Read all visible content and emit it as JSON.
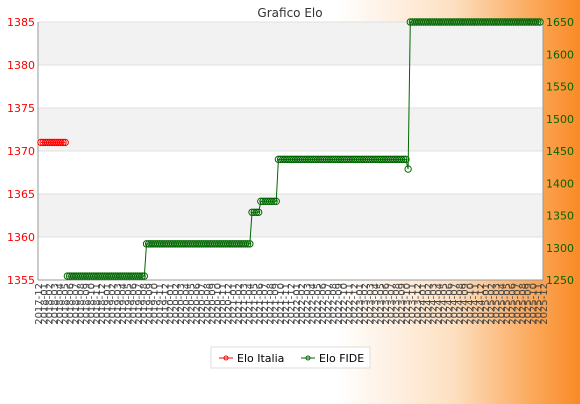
{
  "chart_data": {
    "type": "line",
    "title": "Grafico Elo",
    "grid": true,
    "legend_position": "bottom-center",
    "y_left": {
      "lim": [
        1355,
        1385
      ],
      "ticks": [
        1355,
        1360,
        1365,
        1370,
        1375,
        1380,
        1385
      ],
      "color": "#ff0000"
    },
    "y_right": {
      "lim": [
        1250,
        1650
      ],
      "ticks": [
        1250,
        1300,
        1350,
        1400,
        1450,
        1500,
        1550,
        1600,
        1650
      ],
      "color": "#006600"
    },
    "x_tick_labels": [
      "2017-12",
      "2018-01",
      "2018-02",
      "2018-03",
      "2018-04",
      "2018-05",
      "2018-06",
      "2018-07",
      "2018-08",
      "2018-09",
      "2018-10",
      "2018-11",
      "2018-12",
      "2019-01",
      "2019-02",
      "2019-03",
      "2019-04",
      "2019-05",
      "2019-06",
      "2019-07",
      "2019-08",
      "2019-09",
      "2019-10",
      "2019-11",
      "2019-12",
      "2020-01",
      "2020-02",
      "2020-03",
      "2020-04",
      "2020-05",
      "2020-06",
      "2020-07",
      "2020-08",
      "2020-09",
      "2020-10",
      "2020-11",
      "2020-12",
      "2021-01",
      "2021-02",
      "2021-03",
      "2021-04",
      "2021-05",
      "2021-06",
      "2021-07",
      "2021-08",
      "2021-09",
      "2021-10",
      "2021-11",
      "2021-12",
      "2022-01",
      "2022-02",
      "2022-03",
      "2022-04",
      "2022-05",
      "2022-06",
      "2022-07",
      "2022-08",
      "2022-09",
      "2022-10",
      "2022-11",
      "2022-12",
      "2023-01",
      "2023-02",
      "2023-03",
      "2023-04",
      "2023-05",
      "2023-06",
      "2023-07",
      "2023-08",
      "2023-09",
      "2023-10",
      "2023-11",
      "2023-12",
      "2024-01",
      "2024-02",
      "2024-03",
      "2024-04",
      "2024-05",
      "2024-06",
      "2024-07",
      "2024-08",
      "2024-09",
      "2024-10",
      "2024-11",
      "2024-12",
      "2025-01",
      "2025-02",
      "2025-03",
      "2025-04",
      "2025-05",
      "2025-06",
      "2025-07",
      "2025-08",
      "2025-09",
      "2025-10",
      "2025-11",
      "2025-12"
    ],
    "series": [
      {
        "name": "Elo Italia",
        "axis": "left",
        "color": "#ff0000",
        "values": [
          1371,
          1371,
          1371,
          1371,
          1371,
          1371,
          1371,
          1371,
          1371,
          1371,
          1371,
          1371
        ]
      },
      {
        "name": "Elo FIDE",
        "axis": "right",
        "color": "#006600",
        "values": [
          null,
          null,
          null,
          null,
          null,
          null,
          null,
          null,
          null,
          null,
          null,
          null,
          1256,
          1256,
          1256,
          1256,
          1256,
          1256,
          1256,
          1256,
          1256,
          1256,
          1256,
          1256,
          1256,
          1256,
          1256,
          1256,
          1256,
          1256,
          1256,
          1256,
          1256,
          1256,
          1256,
          1256,
          1256,
          1256,
          1256,
          1256,
          1256,
          1256,
          1256,
          1256,
          1256,
          1256,
          1256,
          1256,
          1306,
          1306,
          1306,
          1306,
          1306,
          1306,
          1306,
          1306,
          1306,
          1306,
          1306,
          1306,
          1306,
          1306,
          1306,
          1306,
          1306,
          1306,
          1306,
          1306,
          1306,
          1306,
          1306,
          1306,
          1306,
          1306,
          1306,
          1306,
          1306,
          1306,
          1306,
          1306,
          1306,
          1306,
          1306,
          1306,
          1306,
          1306,
          1306,
          1306,
          1306,
          1306,
          1306,
          1306,
          1306,
          1306,
          1306,
          1306,
          1355,
          1355,
          1355,
          1355,
          1372,
          1372,
          1372,
          1372,
          1372,
          1372,
          1372,
          1372,
          1437,
          1437,
          1437,
          1437,
          1437,
          1437,
          1437,
          1437,
          1437,
          1437,
          1437,
          1437,
          1437,
          1437,
          1437,
          1437,
          1437,
          1437,
          1437,
          1437,
          1437,
          1437,
          1437,
          1437,
          1437,
          1437,
          1437,
          1437,
          1437,
          1437,
          1437,
          1437,
          1437,
          1437,
          1437,
          1437,
          1437,
          1437,
          1437,
          1437,
          1437,
          1437,
          1437,
          1437,
          1437,
          1437,
          1437,
          1437,
          1437,
          1437,
          1437,
          1437,
          1437,
          1437,
          1437,
          1437,
          1437,
          1437,
          1437,
          1422,
          1650,
          1650,
          1650,
          1650,
          1650,
          1650,
          1650,
          1650,
          1650,
          1650,
          1650,
          1650,
          1650,
          1650,
          1650,
          1650,
          1650,
          1650,
          1650,
          1650,
          1650,
          1650,
          1650,
          1650,
          1650,
          1650,
          1650,
          1650,
          1650,
          1650,
          1650,
          1650,
          1650,
          1650,
          1650,
          1650,
          1650,
          1650,
          1650,
          1650,
          1650,
          1650,
          1650,
          1650,
          1650,
          1650,
          1650,
          1650,
          1650,
          1650,
          1650,
          1650,
          1650,
          1650,
          1650,
          1650,
          1650,
          1650,
          1650,
          1650
        ]
      }
    ]
  }
}
